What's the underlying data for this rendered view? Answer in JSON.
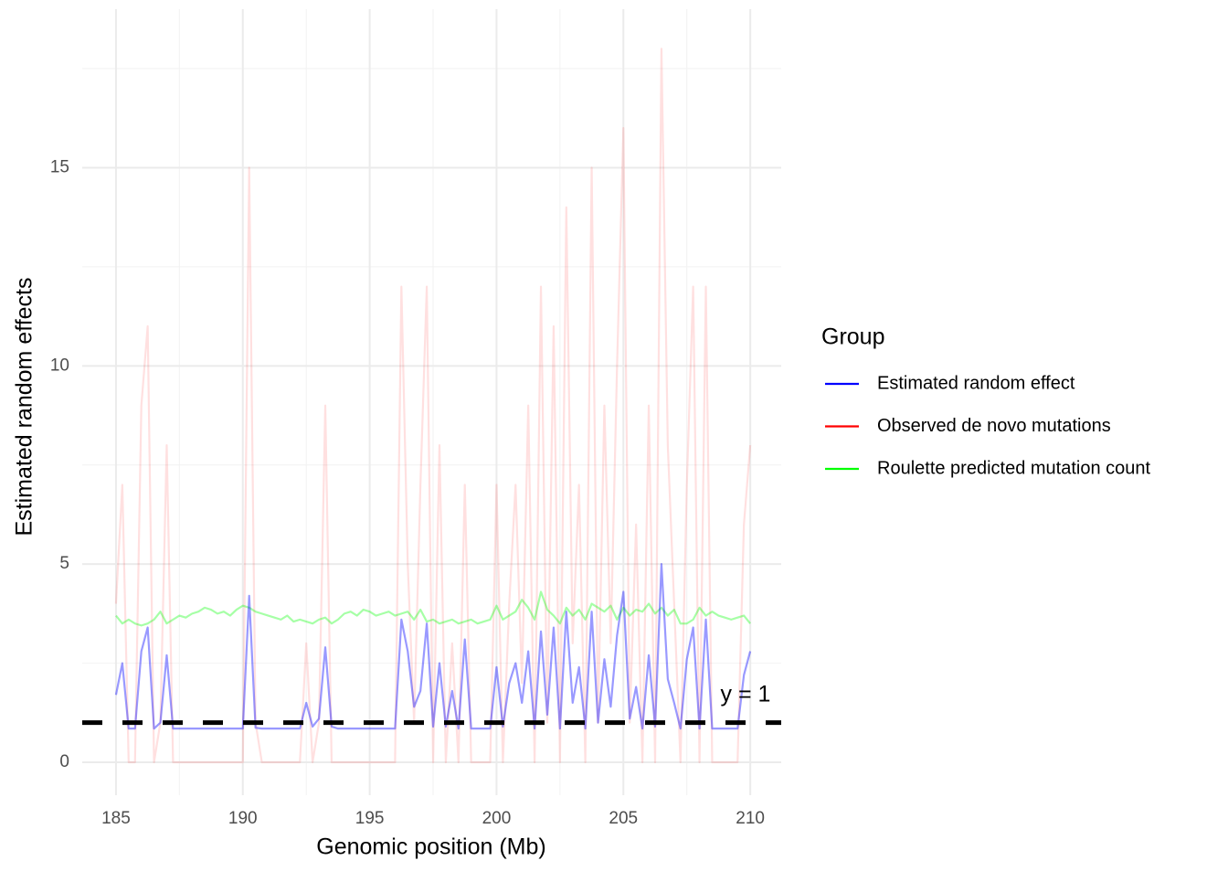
{
  "chart_data": {
    "type": "line",
    "x_label": "Genomic position (Mb)",
    "y_label": "Estimated random effects",
    "legend_title": "Group",
    "legend_position": "right",
    "grid": true,
    "xlim": [
      183.67,
      211.22
    ],
    "ylim": [
      -0.83,
      19
    ],
    "xticks": [
      185,
      190,
      195,
      200,
      205,
      210
    ],
    "yticks": [
      0,
      5,
      10,
      15
    ],
    "xminorticks": [
      187.5,
      192.5,
      197.5,
      202.5,
      207.5
    ],
    "yminorticks": [
      2.5,
      7.5,
      12.5,
      17.5
    ],
    "hline": {
      "y": 1,
      "label": "y = 1",
      "color": "#000000"
    },
    "x": [
      185,
      185.25,
      185.5,
      185.75,
      186,
      186.25,
      186.5,
      186.75,
      187,
      187.25,
      187.5,
      187.75,
      188,
      188.25,
      188.5,
      188.75,
      189,
      189.25,
      189.5,
      189.75,
      190,
      190.25,
      190.5,
      190.75,
      191,
      191.25,
      191.5,
      191.75,
      192,
      192.25,
      192.5,
      192.75,
      193,
      193.25,
      193.5,
      193.75,
      194,
      194.25,
      194.5,
      194.75,
      195,
      195.25,
      195.5,
      195.75,
      196,
      196.25,
      196.5,
      196.75,
      197,
      197.25,
      197.5,
      197.75,
      198,
      198.25,
      198.5,
      198.75,
      199,
      199.25,
      199.5,
      199.75,
      200,
      200.25,
      200.5,
      200.75,
      201,
      201.25,
      201.5,
      201.75,
      202,
      202.25,
      202.5,
      202.75,
      203,
      203.25,
      203.5,
      203.75,
      204,
      204.25,
      204.5,
      204.75,
      205,
      205.25,
      205.5,
      205.75,
      206,
      206.25,
      206.5,
      206.75,
      207,
      207.25,
      207.5,
      207.75,
      208,
      208.25,
      208.5,
      208.75,
      209,
      209.25,
      209.5,
      209.75,
      210
    ],
    "series": [
      {
        "name": "Estimated random effect",
        "color": "#0000ff",
        "opacity": 0.4,
        "values": [
          1.7,
          2.5,
          0.85,
          0.85,
          2.8,
          3.4,
          0.85,
          1.0,
          2.7,
          0.85,
          0.85,
          0.85,
          0.85,
          0.85,
          0.85,
          0.85,
          0.85,
          0.85,
          0.85,
          0.85,
          0.85,
          4.2,
          0.87,
          0.85,
          0.85,
          0.85,
          0.85,
          0.85,
          0.85,
          0.85,
          1.5,
          0.9,
          1.1,
          2.9,
          0.9,
          0.85,
          0.85,
          0.85,
          0.85,
          0.85,
          0.85,
          0.85,
          0.85,
          0.85,
          0.85,
          3.6,
          2.8,
          1.4,
          1.8,
          3.5,
          0.9,
          2.5,
          0.9,
          1.8,
          0.85,
          3.1,
          0.85,
          0.85,
          0.85,
          0.85,
          2.4,
          0.9,
          2.0,
          2.5,
          1.5,
          2.8,
          0.85,
          3.3,
          1.2,
          3.4,
          0.85,
          3.8,
          1.5,
          2.4,
          0.85,
          3.8,
          1.0,
          2.6,
          1.4,
          3.2,
          4.3,
          1.1,
          1.9,
          0.85,
          2.7,
          0.9,
          5.0,
          2.1,
          1.5,
          0.85,
          2.6,
          3.4,
          0.85,
          3.6,
          0.85,
          0.85,
          0.85,
          0.85,
          0.85,
          2.2,
          2.8
        ]
      },
      {
        "name": "Observed de novo mutations",
        "color": "#ff0000",
        "opacity": 0.12,
        "values": [
          4,
          7,
          0,
          0,
          9,
          11,
          0,
          1,
          8,
          0,
          0,
          0,
          0,
          0,
          0,
          0,
          0,
          0,
          0,
          0,
          0,
          15,
          1,
          0,
          0,
          0,
          0,
          0,
          0,
          0,
          3,
          0,
          1,
          9,
          0,
          0,
          0,
          0,
          0,
          0,
          0,
          0,
          0,
          0,
          0,
          12,
          5,
          1,
          7,
          12,
          0,
          8,
          0,
          3,
          0,
          7,
          0,
          0,
          0,
          0,
          7,
          0,
          4,
          7,
          2,
          9,
          0,
          12,
          1,
          11,
          0,
          14,
          3,
          7,
          0,
          15,
          1,
          9,
          3,
          10,
          16,
          1,
          6,
          0,
          9,
          0,
          18,
          8,
          4,
          0,
          7,
          12,
          0,
          12,
          0,
          0,
          0,
          0,
          0,
          6,
          8
        ]
      },
      {
        "name": "Roulette predicted mutation count",
        "color": "#00ff00",
        "opacity": 0.35,
        "values": [
          3.7,
          3.5,
          3.6,
          3.5,
          3.45,
          3.5,
          3.6,
          3.8,
          3.5,
          3.6,
          3.7,
          3.65,
          3.75,
          3.8,
          3.9,
          3.85,
          3.75,
          3.8,
          3.7,
          3.85,
          3.95,
          3.9,
          3.8,
          3.75,
          3.7,
          3.65,
          3.6,
          3.7,
          3.55,
          3.6,
          3.55,
          3.5,
          3.6,
          3.65,
          3.5,
          3.6,
          3.75,
          3.8,
          3.7,
          3.85,
          3.8,
          3.7,
          3.75,
          3.8,
          3.7,
          3.75,
          3.8,
          3.6,
          3.85,
          3.55,
          3.6,
          3.5,
          3.55,
          3.6,
          3.5,
          3.55,
          3.6,
          3.5,
          3.55,
          3.6,
          3.95,
          3.6,
          3.7,
          3.8,
          4.1,
          3.9,
          3.6,
          4.3,
          3.85,
          3.7,
          3.5,
          3.9,
          3.7,
          3.85,
          3.6,
          4.0,
          3.9,
          3.8,
          3.95,
          3.6,
          3.9,
          3.7,
          3.85,
          3.8,
          4.0,
          3.75,
          3.9,
          3.7,
          3.85,
          3.5,
          3.5,
          3.6,
          3.9,
          3.7,
          3.8,
          3.7,
          3.65,
          3.6,
          3.65,
          3.7,
          3.5
        ]
      }
    ]
  }
}
